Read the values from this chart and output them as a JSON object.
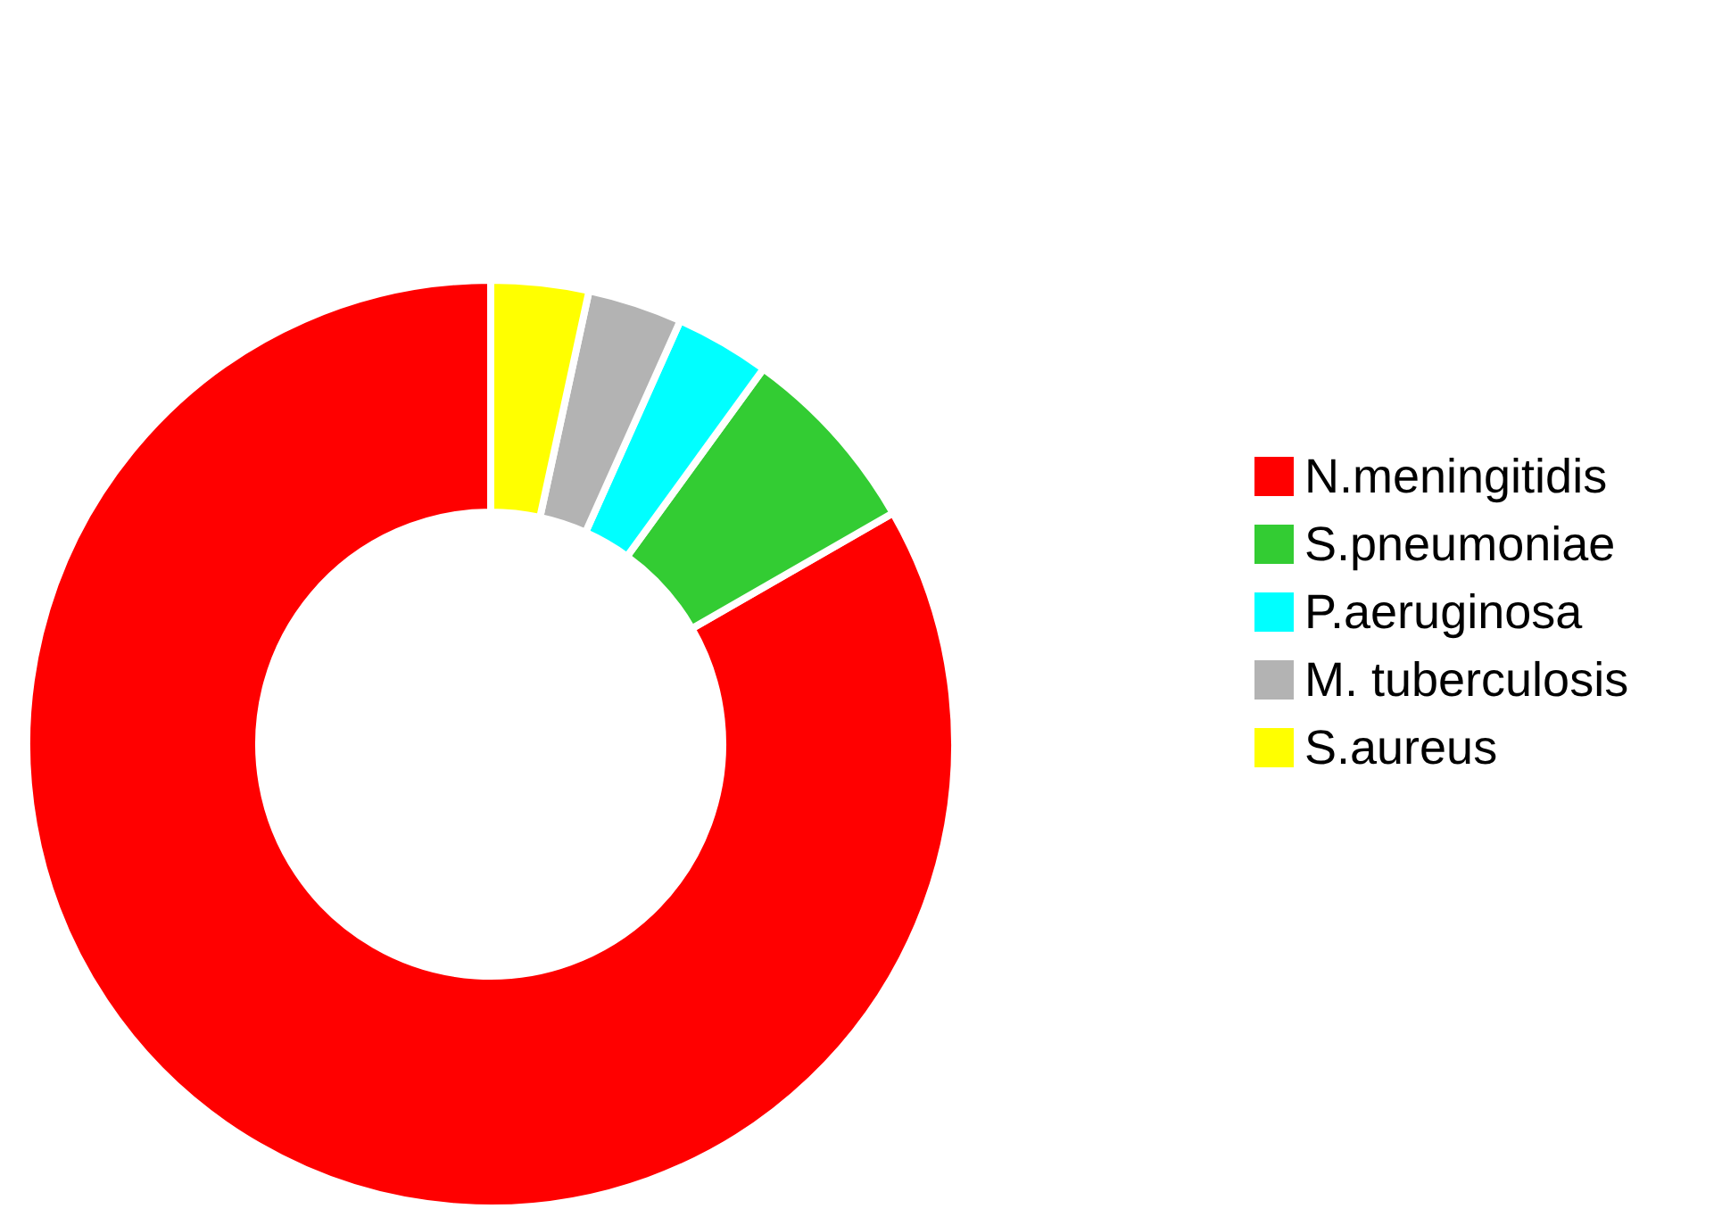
{
  "chart_data": {
    "type": "donut",
    "categories": [
      "N.meningitidis",
      "S.pneumoniae",
      "P.aeruginosa",
      "M. tuberculosis",
      "S.aureus"
    ],
    "values": [
      83.3,
      6.7,
      3.3,
      3.3,
      3.4
    ],
    "colors": [
      "#ff0000",
      "#33cc33",
      "#00ffff",
      "#b3b3b3",
      "#ffff00"
    ],
    "legend": "right"
  }
}
